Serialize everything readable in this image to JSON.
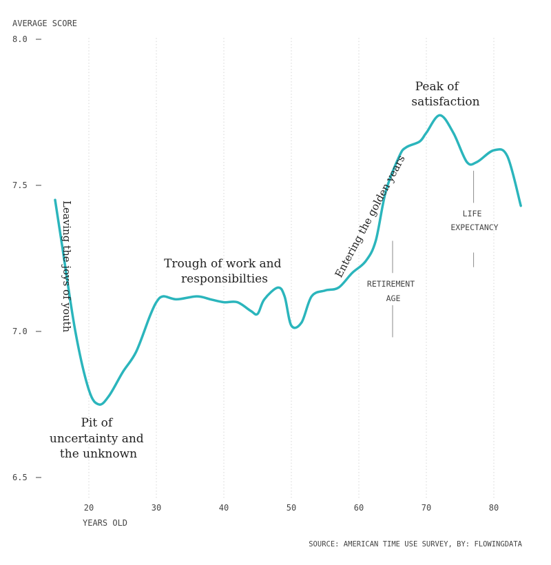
{
  "chart_data": {
    "type": "line",
    "ylabel": "AVERAGE SCORE",
    "xlabel": "YEARS OLD",
    "source": "SOURCE: AMERICAN TIME USE SURVEY, BY: FLOWINGDATA",
    "xlim": [
      15,
      84
    ],
    "ylim": [
      6.5,
      8.0
    ],
    "x_ticks": [
      20,
      30,
      40,
      50,
      60,
      70,
      80
    ],
    "y_ticks": [
      {
        "value": 8.0,
        "label": "8.0"
      },
      {
        "value": 7.5,
        "label": "7.5"
      },
      {
        "value": 7.0,
        "label": "7.0"
      },
      {
        "value": 6.5,
        "label": "6.5"
      }
    ],
    "grid": "vertical dotted",
    "series_color": "#2bb5bc",
    "series": [
      {
        "x": [
          15,
          16,
          18,
          20,
          21.5,
          23,
          25,
          27,
          29,
          30,
          31,
          33,
          36,
          38,
          40,
          42,
          44,
          45,
          46,
          48,
          49,
          50,
          51.5,
          53,
          55,
          57,
          59,
          61,
          62.5,
          64,
          66,
          67,
          69,
          70,
          72,
          74,
          76,
          77.5,
          80,
          82,
          84
        ],
        "y": [
          7.45,
          7.3,
          7.0,
          6.8,
          6.75,
          6.78,
          6.86,
          6.93,
          7.05,
          7.1,
          7.12,
          7.11,
          7.12,
          7.11,
          7.1,
          7.1,
          7.07,
          7.06,
          7.11,
          7.15,
          7.12,
          7.02,
          7.03,
          7.12,
          7.14,
          7.15,
          7.2,
          7.24,
          7.31,
          7.48,
          7.6,
          7.63,
          7.65,
          7.68,
          7.74,
          7.68,
          7.58,
          7.58,
          7.62,
          7.6,
          7.43
        ]
      }
    ],
    "annotations": [
      {
        "text": "Leaving the joys of youth"
      },
      {
        "lines": [
          "Pit of",
          "uncertainty and",
          "the unknown"
        ]
      },
      {
        "lines": [
          "Trough of work and",
          "responsibilties"
        ]
      },
      {
        "text": "Entering the golden years"
      },
      {
        "lines": [
          "Peak of",
          "satisfaction"
        ]
      }
    ],
    "markers": [
      {
        "x": 65,
        "lines": [
          "RETIREMENT",
          "AGE"
        ]
      },
      {
        "x": 77,
        "lines": [
          "LIFE",
          "EXPECTANCY"
        ]
      }
    ]
  }
}
